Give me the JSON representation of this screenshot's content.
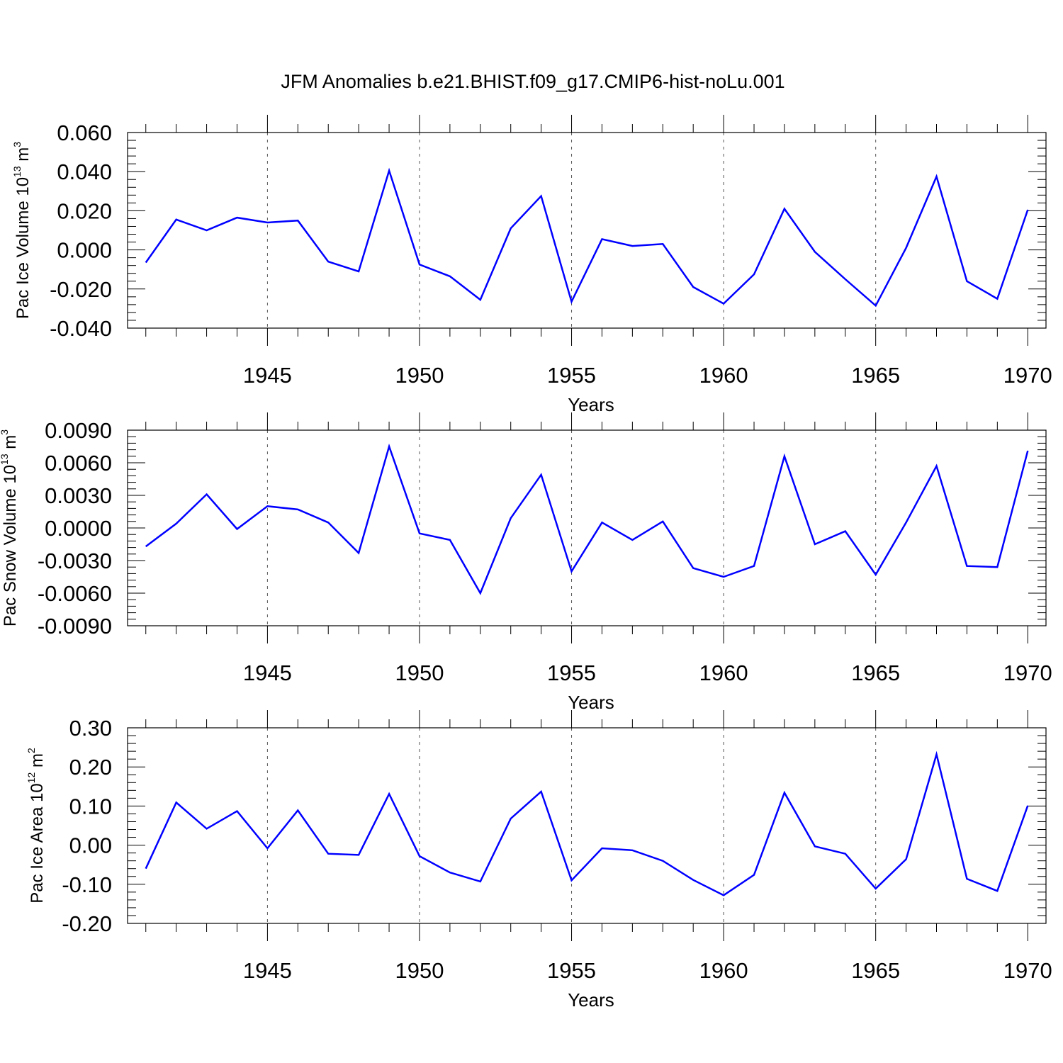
{
  "title": "JFM Anomalies b.e21.BHIST.f09_g17.CMIP6-hist-noLu.001",
  "colors": {
    "line": "#0000ff",
    "axis": "#000000",
    "grid": "#555555"
  },
  "chart_data": [
    {
      "type": "line",
      "xlabel": "Years",
      "ylabel": {
        "main": "Pac Ice Volume 10",
        "exp": "13",
        "unit": " m",
        "unit_exp": "3"
      },
      "xlim": [
        1941,
        1970
      ],
      "ylim": [
        -0.04,
        0.06
      ],
      "x_ticks": [
        1945,
        1950,
        1955,
        1960,
        1965,
        1970
      ],
      "y_ticks": [
        -0.04,
        -0.02,
        0.0,
        0.02,
        0.04,
        0.06
      ],
      "y_tick_labels": [
        "-0.040",
        "-0.020",
        "0.000",
        "0.020",
        "0.040",
        "0.060"
      ],
      "x": [
        1941,
        1942,
        1943,
        1944,
        1945,
        1946,
        1947,
        1948,
        1949,
        1950,
        1951,
        1952,
        1953,
        1954,
        1955,
        1956,
        1957,
        1958,
        1959,
        1960,
        1961,
        1962,
        1963,
        1964,
        1965,
        1966,
        1967,
        1968,
        1969,
        1970
      ],
      "values": [
        -0.0065,
        0.0155,
        0.01,
        0.0165,
        0.014,
        0.015,
        -0.006,
        -0.011,
        0.0405,
        -0.0075,
        -0.0135,
        -0.0255,
        0.011,
        0.0275,
        -0.0265,
        0.0055,
        0.002,
        0.003,
        -0.019,
        -0.0275,
        -0.0125,
        0.021,
        -0.001,
        -0.015,
        -0.0285,
        0.001,
        0.0375,
        -0.016,
        -0.025,
        0.0205
      ]
    },
    {
      "type": "line",
      "xlabel": "Years",
      "ylabel": {
        "main": "Pac Snow Volume 10",
        "exp": "13",
        "unit": " m",
        "unit_exp": "3"
      },
      "xlim": [
        1941,
        1970
      ],
      "ylim": [
        -0.009,
        0.009
      ],
      "x_ticks": [
        1945,
        1950,
        1955,
        1960,
        1965,
        1970
      ],
      "y_ticks": [
        -0.009,
        -0.006,
        -0.003,
        0.0,
        0.003,
        0.006,
        0.009
      ],
      "y_tick_labels": [
        "-0.0090",
        "-0.0060",
        "-0.0030",
        "0.0000",
        "0.0030",
        "0.0060",
        "0.0090"
      ],
      "x": [
        1941,
        1942,
        1943,
        1944,
        1945,
        1946,
        1947,
        1948,
        1949,
        1950,
        1951,
        1952,
        1953,
        1954,
        1955,
        1956,
        1957,
        1958,
        1959,
        1960,
        1961,
        1962,
        1963,
        1964,
        1965,
        1966,
        1967,
        1968,
        1969,
        1970
      ],
      "values": [
        -0.0017,
        0.0004,
        0.0031,
        -0.0001,
        0.002,
        0.0017,
        0.0005,
        -0.0023,
        0.0075,
        -0.0005,
        -0.0011,
        -0.006,
        0.0009,
        0.0049,
        -0.004,
        0.0005,
        -0.0011,
        0.0006,
        -0.0037,
        -0.0045,
        -0.0035,
        0.0066,
        -0.0015,
        -0.0003,
        -0.0043,
        0.0005,
        0.0057,
        -0.0035,
        -0.0036,
        0.0071
      ]
    },
    {
      "type": "line",
      "xlabel": "Years",
      "ylabel": {
        "main": "Pac Ice Area 10",
        "exp": "12",
        "unit": " m",
        "unit_exp": "2"
      },
      "xlim": [
        1941,
        1970
      ],
      "ylim": [
        -0.2,
        0.3
      ],
      "x_ticks": [
        1945,
        1950,
        1955,
        1960,
        1965,
        1970
      ],
      "y_ticks": [
        -0.2,
        -0.1,
        0.0,
        0.1,
        0.2,
        0.3
      ],
      "y_tick_labels": [
        "-0.20",
        "-0.10",
        "0.00",
        "0.10",
        "0.20",
        "0.30"
      ],
      "x": [
        1941,
        1942,
        1943,
        1944,
        1945,
        1946,
        1947,
        1948,
        1949,
        1950,
        1951,
        1952,
        1953,
        1954,
        1955,
        1956,
        1957,
        1958,
        1959,
        1960,
        1961,
        1962,
        1963,
        1964,
        1965,
        1966,
        1967,
        1968,
        1969,
        1970
      ],
      "values": [
        -0.06,
        0.109,
        0.042,
        0.087,
        -0.008,
        0.089,
        -0.022,
        -0.025,
        0.131,
        -0.028,
        -0.07,
        -0.093,
        0.068,
        0.137,
        -0.09,
        -0.008,
        -0.013,
        -0.04,
        -0.089,
        -0.128,
        -0.076,
        0.134,
        -0.003,
        -0.022,
        -0.111,
        -0.036,
        0.232,
        -0.086,
        -0.117,
        0.101
      ]
    }
  ]
}
